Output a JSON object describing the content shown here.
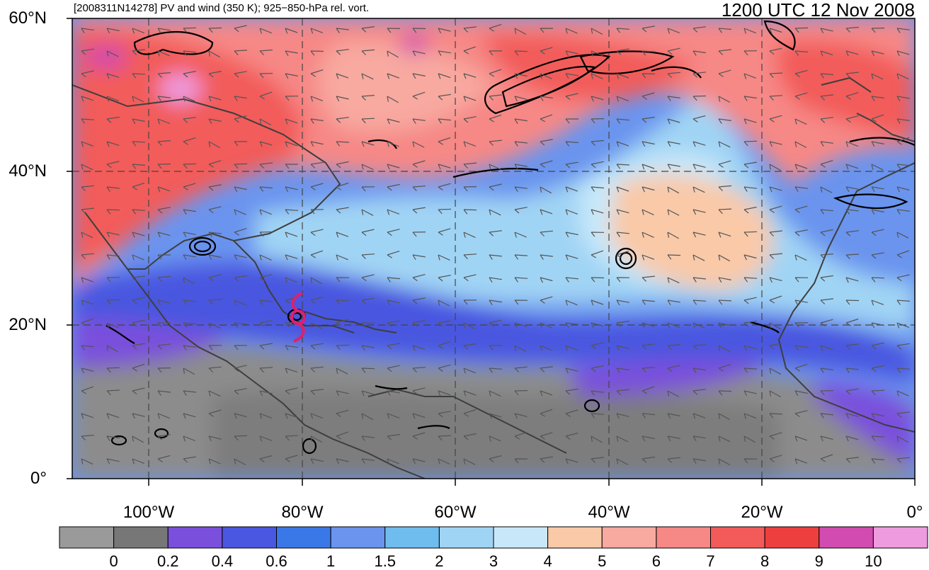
{
  "header": {
    "left": "[2008311N14278] PV and wind (350 K); 925−850-hPa rel. vort.",
    "right": "1200 UTC 12 Nov 2008"
  },
  "axes": {
    "y_labels": [
      "60°N",
      "40°N",
      "20°N",
      "0°"
    ],
    "x_labels": [
      "100°W",
      "80°W",
      "60°W",
      "40°W",
      "20°W",
      "0°"
    ]
  },
  "colorbar": {
    "labels": [
      "0",
      "0.2",
      "0.4",
      "0.6",
      "1",
      "1.5",
      "2",
      "3",
      "4",
      "5",
      "6",
      "7",
      "8",
      "9",
      "10"
    ],
    "colors": [
      "#9a9a9a",
      "#777777",
      "#7a4fdc",
      "#4a57e0",
      "#3a78e8",
      "#6a94ee",
      "#6fbdee",
      "#a0d4f4",
      "#c8e8fa",
      "#f9c9a8",
      "#f8a9a0",
      "#f68886",
      "#f25b5a",
      "#ee3f3f",
      "#d24bb0",
      "#ee9be0"
    ]
  },
  "map": {
    "lon_range": [
      -110,
      0
    ],
    "lat_range": [
      0,
      60
    ],
    "storm_symbol": "tropical-storm-icon",
    "storm_color": "#e0206b"
  }
}
